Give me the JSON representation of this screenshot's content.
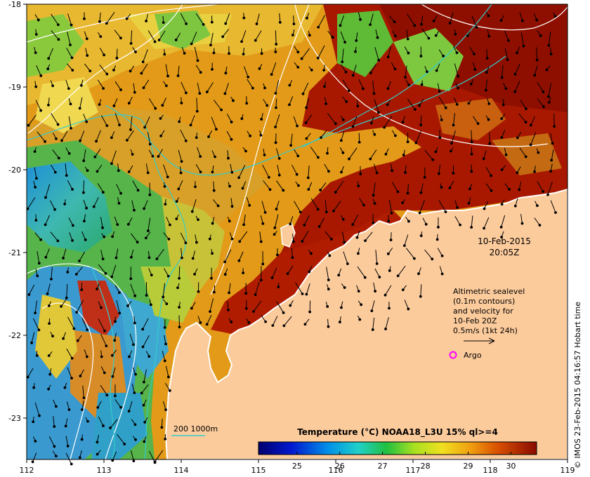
{
  "map": {
    "x_ticks": [
      "112",
      "113",
      "114",
      "115",
      "116",
      "117",
      "118",
      "119"
    ],
    "y_ticks": [
      "-18",
      "-19",
      "-20",
      "-21",
      "-22",
      "-23"
    ],
    "date": "10-Feb-2015",
    "time": "20:05Z",
    "legend_lines": [
      "Altimetric sealevel",
      "(0.1m contours)",
      "and velocity for",
      "10-Feb 20Z",
      "0.5m/s (1kt 24h)"
    ],
    "argo_label": "Argo",
    "bathy_label": "200  1000m",
    "credit": "© IMOS 23-Feb-2015 04:16:57 Hobart time",
    "colors": {
      "land": "#fccb9c",
      "bathy_line": "#33cccc",
      "argo": "#ff00ff"
    }
  },
  "colorbar": {
    "title": "Temperature (°C) NOAA18_L3U 15% ql>=4",
    "ticks": [
      "25",
      "26",
      "27",
      "28",
      "29",
      "30"
    ],
    "range": [
      24.1,
      30.6
    ]
  }
}
